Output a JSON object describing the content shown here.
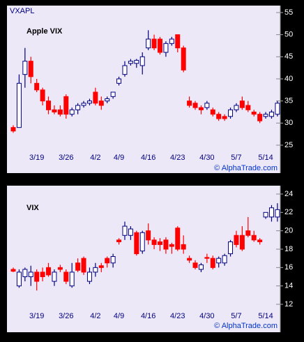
{
  "chart_data": [
    {
      "type": "candlestick",
      "title": "Apple VIX",
      "ticker": "VXAPL",
      "source": "© AlphaTrade.com",
      "categories": [
        null,
        null,
        null,
        null,
        "3/19",
        null,
        null,
        null,
        null,
        "3/26",
        null,
        null,
        null,
        null,
        "4/2",
        null,
        null,
        null,
        "4/9",
        null,
        null,
        null,
        null,
        "4/16",
        null,
        null,
        null,
        null,
        "4/23",
        null,
        null,
        null,
        null,
        "4/30",
        null,
        null,
        null,
        null,
        "5/7",
        null,
        null,
        null,
        null,
        "5/14",
        null,
        null
      ],
      "open": [
        29,
        29,
        41,
        44,
        39,
        37.5,
        35,
        33,
        33,
        36,
        32,
        33,
        34,
        34.5,
        37,
        35,
        35,
        36,
        39,
        41,
        43.5,
        43.5,
        43,
        47,
        49,
        49,
        46,
        48,
        50,
        47,
        35,
        34.5,
        33.5,
        33.5,
        33,
        32,
        31.5,
        31.5,
        33,
        35,
        34,
        32.5,
        32,
        31.5,
        31.5,
        32
      ],
      "high": [
        29.5,
        41,
        47,
        45,
        40,
        38,
        36,
        34,
        34,
        36.5,
        33.5,
        34.5,
        35,
        35.5,
        38,
        36,
        36,
        37,
        40.5,
        44,
        44.5,
        44.5,
        46,
        51,
        50,
        49.5,
        48.5,
        49.5,
        50,
        47.5,
        36,
        35,
        34,
        35,
        33.5,
        32.5,
        32,
        33.5,
        34.5,
        36,
        35,
        33,
        32.5,
        32.5,
        33,
        35
      ],
      "low": [
        27.8,
        29,
        38,
        39,
        37,
        34,
        32,
        32,
        31.5,
        31,
        31.5,
        32,
        33.5,
        34,
        34,
        33,
        34.5,
        35.5,
        38.5,
        40.5,
        43,
        42.5,
        41,
        46.5,
        46.5,
        45.5,
        45,
        47.5,
        46,
        41.5,
        33.5,
        33,
        32,
        33,
        31.5,
        30.5,
        30.5,
        31,
        32.5,
        33,
        32.5,
        31.5,
        30,
        31,
        31,
        31.5
      ],
      "close": [
        28.2,
        39,
        44,
        40.5,
        37.5,
        35,
        33,
        32.5,
        32,
        32,
        33,
        34,
        34.5,
        35,
        34.5,
        34,
        35.5,
        37,
        40,
        43,
        44,
        44.2,
        45,
        49,
        47,
        46,
        48,
        49,
        47,
        42,
        34,
        33.5,
        33,
        34.5,
        32,
        31,
        31,
        33,
        34,
        33.5,
        33,
        32,
        30.5,
        32,
        32.5,
        34.5
      ],
      "up_color": "#ffffff",
      "down_color": "#ff0000",
      "outline_color": "#000080",
      "ylim": [
        25,
        55
      ],
      "yticks": [
        25,
        30,
        35,
        40,
        45,
        50,
        55
      ]
    },
    {
      "type": "candlestick",
      "title": "VIX",
      "source": "© AlphaTrade.com",
      "categories": [
        null,
        null,
        null,
        null,
        "3/19",
        null,
        null,
        null,
        null,
        "3/26",
        null,
        null,
        null,
        null,
        "4/2",
        null,
        null,
        null,
        "4/9",
        null,
        null,
        null,
        null,
        "4/16",
        null,
        null,
        null,
        null,
        "4/23",
        null,
        null,
        null,
        null,
        "4/30",
        null,
        null,
        null,
        null,
        "5/7",
        null,
        null,
        null,
        null,
        "5/14",
        null,
        null
      ],
      "open": [
        15.8,
        14,
        15,
        15,
        15.5,
        15.5,
        16,
        14.5,
        16,
        15.5,
        14,
        16.5,
        17,
        14.5,
        15.5,
        16.2,
        17,
        16.5,
        19,
        19.5,
        19.5,
        19.8,
        17.8,
        20,
        19,
        18.8,
        19,
        18.5,
        20.3,
        18.5,
        17,
        16.5,
        15.8,
        17.1,
        17,
        16.5,
        16.5,
        17.5,
        19.5,
        19.5,
        20,
        19.5,
        19,
        21.5,
        21.5,
        21.5
      ],
      "high": [
        16,
        15.8,
        16,
        16.2,
        15.8,
        16,
        16.5,
        15.8,
        16.3,
        15.8,
        16.5,
        17,
        17.2,
        16,
        16.5,
        16.5,
        17.2,
        17.5,
        19.2,
        21,
        20.5,
        20,
        20,
        20.8,
        19.3,
        19.2,
        19.3,
        18.7,
        20.5,
        19.5,
        17.3,
        16.8,
        16.5,
        17.5,
        17.3,
        17.2,
        17.5,
        19,
        20,
        20.5,
        21.5,
        20,
        19.2,
        22,
        22.8,
        23
      ],
      "low": [
        15.5,
        13.8,
        14.5,
        14,
        13.5,
        14.5,
        15,
        14,
        15.5,
        14.2,
        13.8,
        15.5,
        15.2,
        14.2,
        15,
        15.5,
        16,
        16,
        18.5,
        19,
        19,
        17.3,
        17.5,
        18.5,
        18,
        17.8,
        17.5,
        17.5,
        17.8,
        17.5,
        16.5,
        15.8,
        15.5,
        16.5,
        15.8,
        16,
        16.2,
        17.2,
        18.2,
        17.8,
        19.3,
        18.8,
        18.5,
        21.3,
        21,
        21
      ],
      "close": [
        15.6,
        15.5,
        15.8,
        15.5,
        14.5,
        15,
        15.2,
        15.5,
        15.8,
        14.5,
        15.5,
        15.7,
        15.5,
        15.5,
        16,
        16,
        16.5,
        17.2,
        18.8,
        20.5,
        20.2,
        17.5,
        19.8,
        19,
        18.5,
        18.5,
        18,
        18.3,
        18,
        18,
        16.8,
        16,
        16.3,
        17,
        16,
        17,
        17.3,
        18.8,
        18.5,
        18,
        19.5,
        19,
        18.8,
        22,
        22.5,
        22.3
      ],
      "up_color": "#ffffff",
      "down_color": "#ff0000",
      "outline_color": "#000080",
      "ylim": [
        12,
        24
      ],
      "yticks": [
        12,
        14,
        16,
        18,
        20,
        22,
        24
      ]
    }
  ]
}
